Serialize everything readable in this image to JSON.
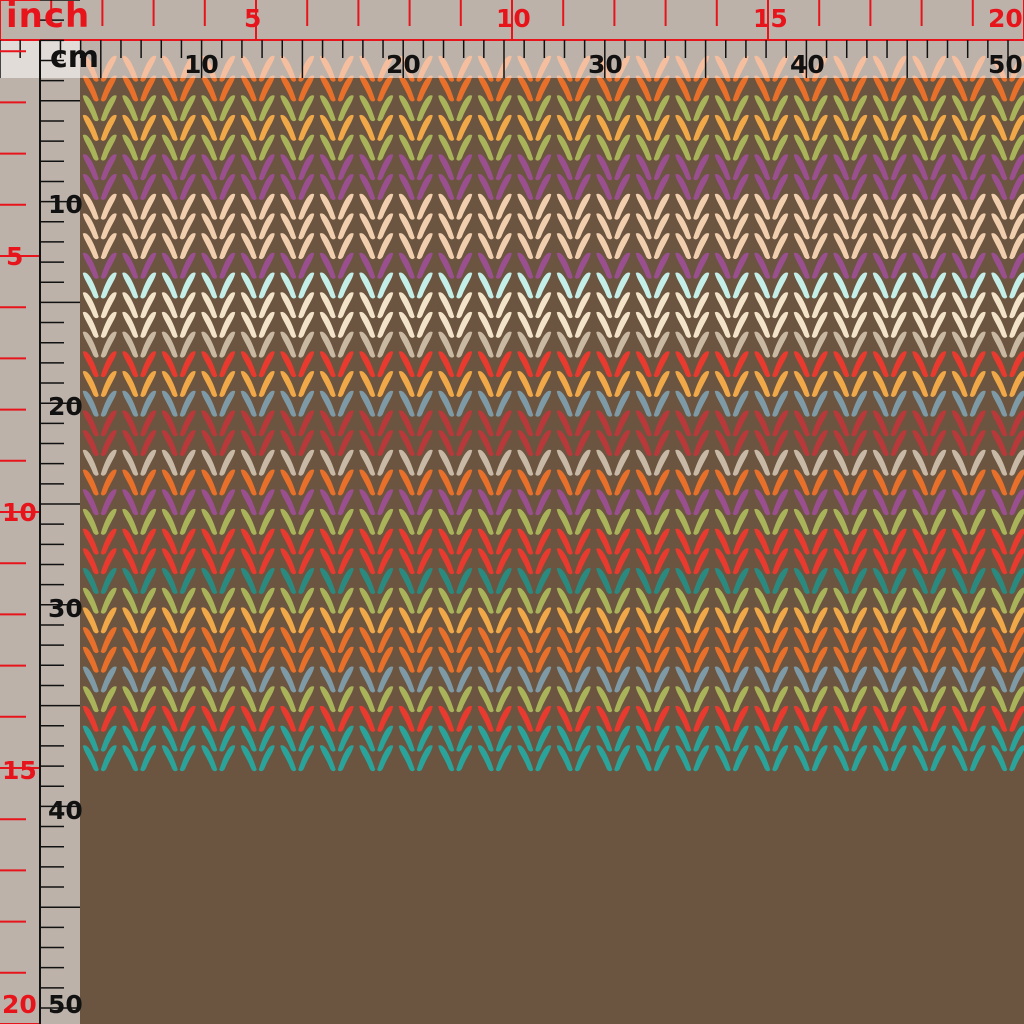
{
  "ruler": {
    "inch_label": "inch",
    "cm_label": "cm",
    "top_inch_numbers": [
      "5",
      "10",
      "15",
      "20"
    ],
    "top_cm_numbers": [
      "10",
      "20",
      "30",
      "40",
      "50"
    ],
    "left_inch_numbers": [
      "5",
      "10",
      "15",
      "20"
    ],
    "left_cm_numbers": [
      "10",
      "20",
      "30",
      "40",
      "50"
    ]
  },
  "colors": {
    "background": "#6b5540",
    "inch_ruler": "#e8141c",
    "cm_ruler": "#111111",
    "stripes": [
      "#e8702a",
      "#a9b35a",
      "#f0a848",
      "#a9b35a",
      "#9a4f8e",
      "#9a4f8e",
      "#f1cfae",
      "#f1cfae",
      "#f1cfae",
      "#9a4f8e",
      "#c4eee8",
      "#f3e3c8",
      "#f3e3c8",
      "#c9b9a3",
      "#e83a2e",
      "#f0a848",
      "#7f9aa7",
      "#b8393a",
      "#b8393a",
      "#c8b8a6",
      "#e8702a",
      "#9a4f8e",
      "#a9b35a",
      "#e83a2e",
      "#e83a2e",
      "#2a8a80",
      "#a9b35a",
      "#f0a848",
      "#e8702a",
      "#e8702a",
      "#7f9aa7",
      "#a9b35a",
      "#e83a2e",
      "#2aa39a"
    ]
  },
  "pattern": {
    "name": "knit-stitch-stripes"
  }
}
